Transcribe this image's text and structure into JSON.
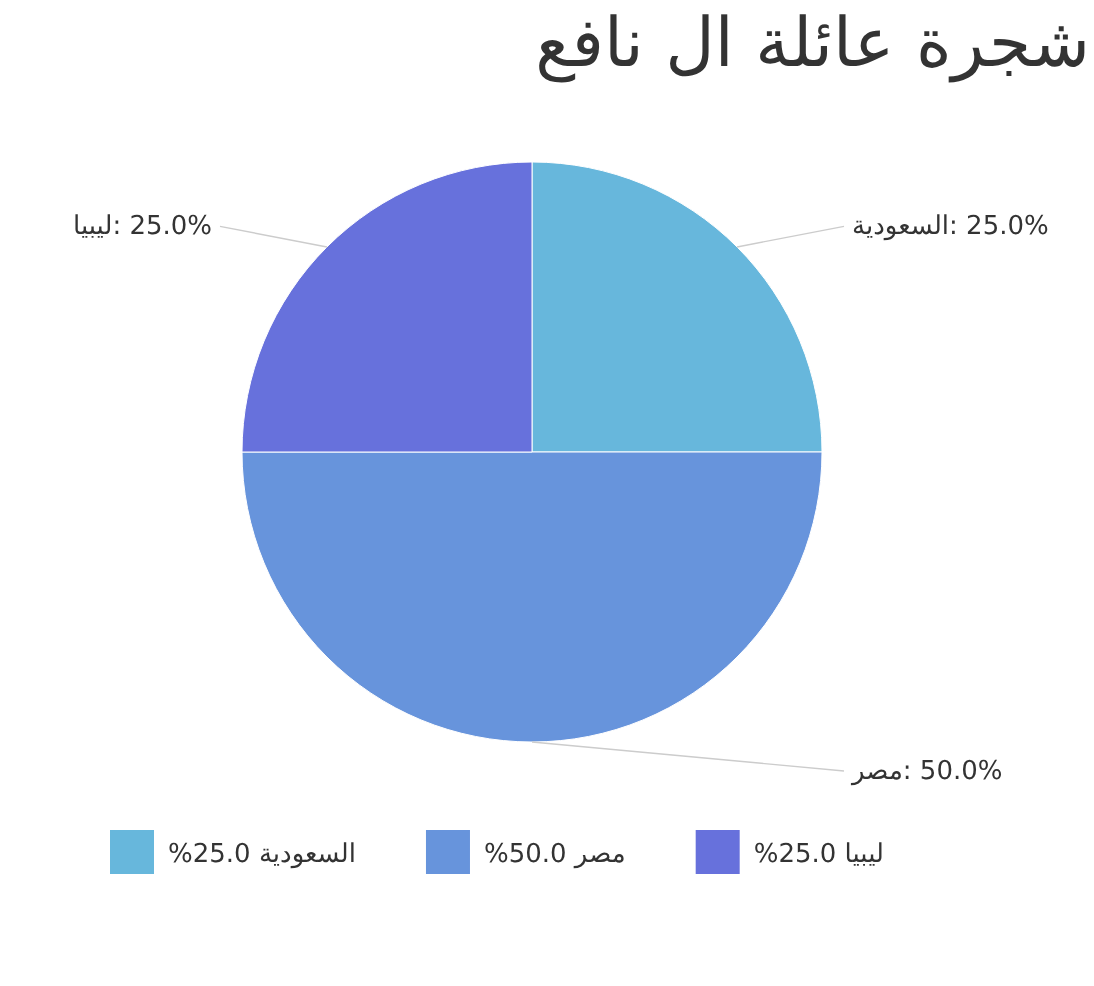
{
  "chart_data": {
    "type": "pie",
    "title": "شجرة عائلة ال نافع",
    "categories": [
      "السعودية",
      "مصر",
      "ليبيا"
    ],
    "values": [
      25,
      50,
      25
    ],
    "colors": [
      "#67b7dc",
      "#6794dc",
      "#6771dc"
    ],
    "value_labels": [
      "25.0%",
      "50.0%",
      "25.0%"
    ],
    "legend": "bottom"
  }
}
